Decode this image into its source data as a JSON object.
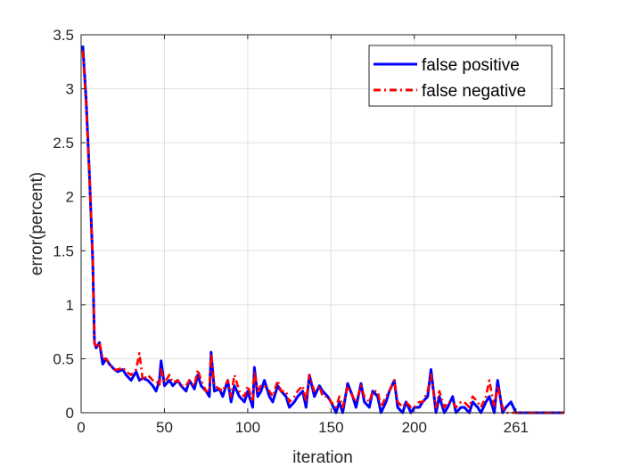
{
  "chart_data": {
    "type": "line",
    "xlabel": "iteration",
    "ylabel": "error(percent)",
    "xlim": [
      0,
      290
    ],
    "ylim": [
      0,
      3.5
    ],
    "xticks": [
      0,
      50,
      100,
      150,
      200,
      261
    ],
    "yticks": [
      0,
      0.5,
      1,
      1.5,
      2,
      2.5,
      3,
      3.5
    ],
    "xtick_labels": [
      "0",
      "50",
      "100",
      "150",
      "200",
      "261"
    ],
    "ytick_labels": [
      "0",
      "0.5",
      "1",
      "1.5",
      "2",
      "2.5",
      "3",
      "3.5"
    ],
    "grid": true,
    "legend_position": "top-right",
    "series": [
      {
        "name": "false positive",
        "color": "#0000ff",
        "style": "solid",
        "x": [
          1,
          3,
          5,
          7,
          8,
          9,
          11,
          13,
          15,
          17,
          20,
          22,
          25,
          27,
          30,
          33,
          35,
          37,
          40,
          43,
          45,
          47,
          48,
          50,
          53,
          55,
          58,
          60,
          63,
          65,
          68,
          70,
          72,
          75,
          77,
          78,
          80,
          83,
          85,
          88,
          90,
          92,
          95,
          98,
          100,
          103,
          104,
          106,
          108,
          110,
          113,
          115,
          118,
          120,
          123,
          125,
          128,
          130,
          133,
          135,
          137,
          140,
          143,
          145,
          148,
          150,
          153,
          155,
          157,
          160,
          163,
          165,
          168,
          170,
          173,
          175,
          178,
          180,
          183,
          185,
          188,
          190,
          193,
          195,
          198,
          200,
          203,
          205,
          208,
          210,
          213,
          215,
          218,
          220,
          223,
          225,
          228,
          230,
          233,
          235,
          238,
          240,
          243,
          245,
          248,
          250,
          253,
          255,
          258,
          261,
          265,
          270,
          275,
          280,
          285,
          290
        ],
        "y": [
          3.4,
          2.9,
          2.2,
          1.4,
          0.65,
          0.6,
          0.65,
          0.45,
          0.5,
          0.45,
          0.4,
          0.38,
          0.4,
          0.35,
          0.3,
          0.38,
          0.3,
          0.32,
          0.3,
          0.25,
          0.2,
          0.3,
          0.48,
          0.25,
          0.3,
          0.25,
          0.3,
          0.25,
          0.2,
          0.3,
          0.22,
          0.35,
          0.25,
          0.2,
          0.15,
          0.56,
          0.2,
          0.22,
          0.15,
          0.3,
          0.1,
          0.25,
          0.15,
          0.1,
          0.2,
          0.05,
          0.42,
          0.15,
          0.2,
          0.3,
          0.15,
          0.1,
          0.25,
          0.2,
          0.15,
          0.05,
          0.1,
          0.15,
          0.2,
          0.05,
          0.35,
          0.15,
          0.25,
          0.2,
          0.15,
          0.1,
          0,
          0.1,
          0,
          0.27,
          0.15,
          0.05,
          0.27,
          0.1,
          0.05,
          0.2,
          0.15,
          0,
          0.1,
          0.2,
          0.3,
          0.05,
          0,
          0.1,
          0,
          0.05,
          0.05,
          0.1,
          0.15,
          0.4,
          0,
          0.15,
          0,
          0.05,
          0.15,
          0,
          0.05,
          0.05,
          0,
          0.1,
          0.05,
          0,
          0.1,
          0.15,
          0,
          0.3,
          0,
          0.05,
          0.1,
          0,
          0,
          0,
          0,
          0,
          0,
          0
        ]
      },
      {
        "name": "false negative",
        "color": "#ff0000",
        "style": "dashed",
        "x": [
          1,
          3,
          5,
          7,
          8,
          9,
          11,
          13,
          15,
          17,
          20,
          22,
          25,
          27,
          30,
          33,
          35,
          37,
          40,
          43,
          45,
          47,
          48,
          50,
          53,
          55,
          58,
          60,
          63,
          65,
          68,
          70,
          72,
          75,
          77,
          78,
          80,
          83,
          85,
          88,
          90,
          92,
          95,
          98,
          100,
          103,
          104,
          106,
          108,
          110,
          113,
          115,
          118,
          120,
          123,
          125,
          128,
          130,
          133,
          135,
          137,
          140,
          143,
          145,
          148,
          150,
          153,
          155,
          157,
          160,
          163,
          165,
          168,
          170,
          173,
          175,
          178,
          180,
          183,
          185,
          188,
          190,
          193,
          195,
          198,
          200,
          203,
          205,
          208,
          210,
          213,
          215,
          218,
          220,
          223,
          225,
          228,
          230,
          233,
          235,
          238,
          240,
          243,
          245,
          248,
          250,
          253,
          255,
          258,
          261,
          265,
          270,
          275,
          280,
          285,
          290
        ],
        "y": [
          3.35,
          2.85,
          2.2,
          1.4,
          0.65,
          0.6,
          0.65,
          0.5,
          0.5,
          0.45,
          0.4,
          0.4,
          0.42,
          0.38,
          0.35,
          0.4,
          0.55,
          0.3,
          0.35,
          0.3,
          0.3,
          0.25,
          0.4,
          0.28,
          0.35,
          0.28,
          0.3,
          0.25,
          0.25,
          0.3,
          0.25,
          0.4,
          0.3,
          0.2,
          0.2,
          0.55,
          0.25,
          0.22,
          0.2,
          0.3,
          0.15,
          0.35,
          0.2,
          0.15,
          0.25,
          0.1,
          0.38,
          0.2,
          0.25,
          0.25,
          0.2,
          0.15,
          0.3,
          0.2,
          0.2,
          0.1,
          0.15,
          0.2,
          0.25,
          0.1,
          0.35,
          0.2,
          0.25,
          0.15,
          0.15,
          0.1,
          0.05,
          0.15,
          0.05,
          0.25,
          0.15,
          0.1,
          0.25,
          0.15,
          0.1,
          0.2,
          0.2,
          0.05,
          0.15,
          0.2,
          0.3,
          0.1,
          0.05,
          0.1,
          0.05,
          0.05,
          0.1,
          0.1,
          0.2,
          0.35,
          0.05,
          0.2,
          0.05,
          0.1,
          0.1,
          0.05,
          0.1,
          0.1,
          0.05,
          0.15,
          0.1,
          0.05,
          0.15,
          0.3,
          0.05,
          0.25,
          0.05,
          0,
          0,
          0,
          0,
          0,
          0,
          0,
          0,
          0
        ]
      }
    ]
  }
}
